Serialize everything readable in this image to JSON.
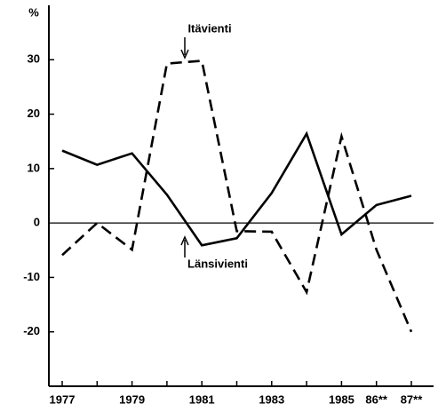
{
  "chart_data": {
    "type": "line",
    "y_axis_label": "%",
    "categories": [
      "1977",
      null,
      "1979",
      null,
      "1981",
      null,
      "1983",
      null,
      "1985",
      "86**",
      "87**"
    ],
    "series": [
      {
        "name": "Itävienti",
        "color": "#000000",
        "dashed": true,
        "values": [
          -5.9,
          0,
          -4.9,
          29.3,
          29.8,
          -1.5,
          -1.6,
          -12.7,
          15.9,
          -4.9,
          -20
        ]
      },
      {
        "name": "Länsivienti",
        "color": "#000000",
        "dashed": false,
        "values": [
          13.3,
          10.7,
          12.8,
          5.2,
          -4.1,
          -2.8,
          5.5,
          16.4,
          -2.1,
          3.3,
          5.0
        ]
      }
    ],
    "ylim": [
      -30,
      40
    ],
    "yticks": [
      -20,
      -10,
      0,
      10,
      20,
      30
    ],
    "grid": false
  }
}
